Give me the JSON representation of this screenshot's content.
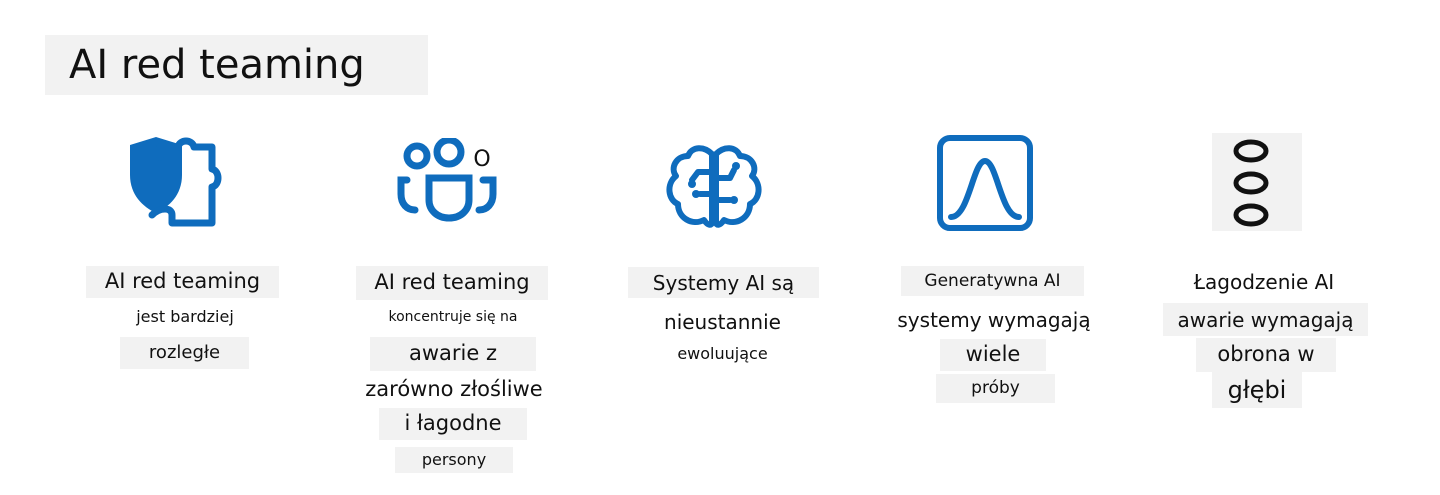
{
  "title": "AI red teaming",
  "colors": {
    "accent": "#0f6cbd",
    "box": "#f2f2f2"
  },
  "columns": [
    {
      "icon": "shield-puzzle-icon",
      "lines": [
        "AI red teaming",
        "jest bardziej",
        "rozległe"
      ]
    },
    {
      "icon": "people-team-icon",
      "icon_text": "O",
      "lines": [
        "AI red teaming",
        "koncentruje się na",
        "awarie z",
        "zarówno złośliwe",
        "i łagodne",
        "persony"
      ]
    },
    {
      "icon": "brain-circuit-icon",
      "lines": [
        "Systemy AI są",
        "nieustannie",
        "ewoluujące"
      ]
    },
    {
      "icon": "bell-curve-chart-icon",
      "lines": [
        "Generatywna AI",
        "systemy wymagają",
        "wiele",
        "próby"
      ]
    },
    {
      "icon": "three-circles-icon",
      "lines": [
        "Łagodzenie AI",
        "awarie wymagają",
        "obrona w",
        "głębi"
      ]
    }
  ]
}
